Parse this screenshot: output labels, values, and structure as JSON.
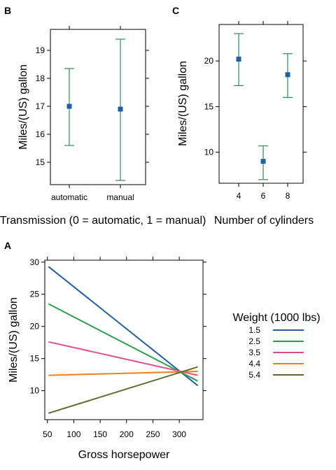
{
  "chart_data": [
    {
      "panel": "B",
      "type": "scatter",
      "categories": [
        "automatic",
        "manual"
      ],
      "values": [
        17.0,
        16.9
      ],
      "lower": [
        15.6,
        14.35
      ],
      "upper": [
        18.35,
        19.4
      ],
      "ylabel": "Miles/(US) gallon",
      "xlabel": "Transmission (0 = automatic, 1 = manual)",
      "ylim": [
        14.2,
        19.75
      ],
      "yticks": [
        15,
        16,
        17,
        18,
        19
      ],
      "colors": {
        "point": "#1f5fa8",
        "errorbar": "#2e8b57"
      }
    },
    {
      "panel": "C",
      "type": "scatter",
      "categories": [
        "4",
        "6",
        "8"
      ],
      "values": [
        20.2,
        9.0,
        18.5
      ],
      "lower": [
        17.3,
        7.0,
        16.0
      ],
      "upper": [
        23.0,
        10.7,
        20.8
      ],
      "ylabel": "Miles/(US) gallon",
      "xlabel": "Number of cylinders",
      "ylim": [
        6.6,
        24.0
      ],
      "yticks": [
        10,
        15,
        20
      ],
      "colors": {
        "point": "#1f5fa8",
        "errorbar": "#2e8b57"
      }
    },
    {
      "panel": "A",
      "type": "line",
      "xlabel": "Gross horsepower",
      "ylabel": "Miles/(US) gallon",
      "xlim": [
        45,
        345
      ],
      "ylim": [
        5.5,
        30.3
      ],
      "xticks": [
        50,
        100,
        150,
        200,
        250,
        300
      ],
      "yticks": [
        10,
        15,
        20,
        25,
        30
      ],
      "legend_title": "Weight (1000 lbs)",
      "legend_position": "right",
      "series": [
        {
          "name": "1.5",
          "color": "#1f5fa8",
          "x": [
            52,
            335
          ],
          "y": [
            29.3,
            10.8
          ]
        },
        {
          "name": "2.5",
          "color": "#2e9e4f",
          "x": [
            52,
            335
          ],
          "y": [
            23.5,
            11.5
          ]
        },
        {
          "name": "3.5",
          "color": "#e8508c",
          "x": [
            52,
            335
          ],
          "y": [
            17.6,
            12.4
          ]
        },
        {
          "name": "4.4",
          "color": "#f07d1e",
          "x": [
            52,
            335
          ],
          "y": [
            12.4,
            13.0
          ]
        },
        {
          "name": "5.4",
          "color": "#5c6b2f",
          "x": [
            52,
            335
          ],
          "y": [
            6.5,
            13.7
          ]
        }
      ]
    }
  ]
}
